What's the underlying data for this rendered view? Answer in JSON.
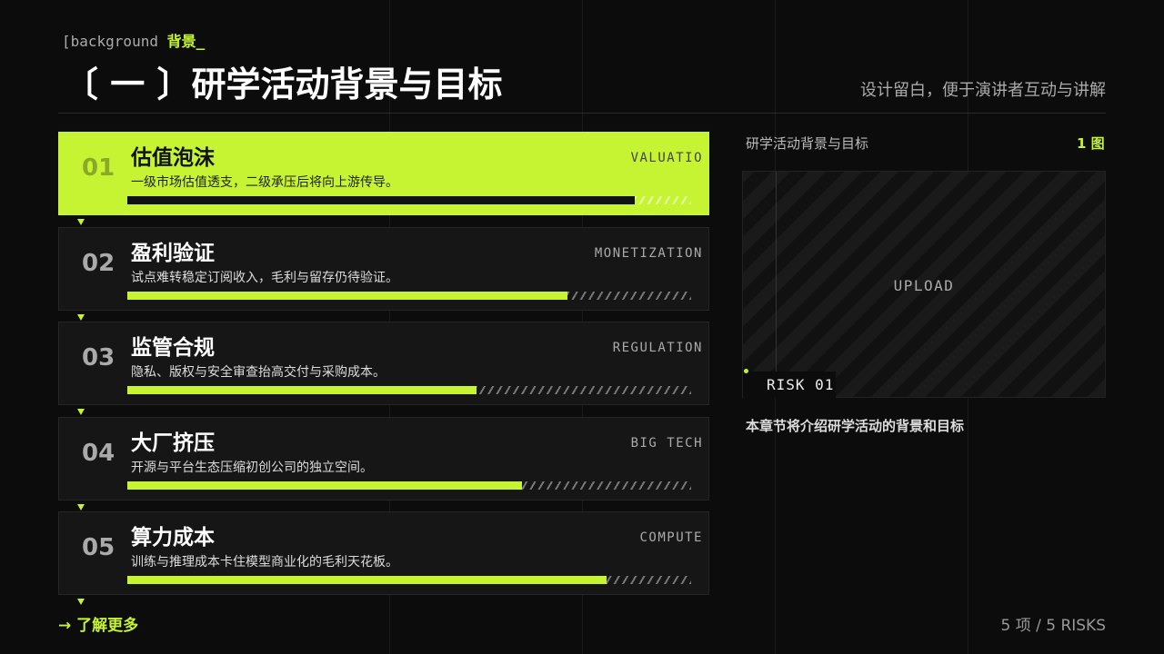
{
  "header": {
    "tag": "[background",
    "tag_accent": "背景_",
    "title": "〔 一 〕研学活动背景与目标",
    "note": "设计留白，便于演讲者互动与讲解"
  },
  "items": [
    {
      "number": "01",
      "title": "估值泡沫",
      "description": "一级市场估值透支，二级承压后将向上游传导。",
      "tag": "VALUATIO",
      "level": 90
    },
    {
      "number": "02",
      "title": "盈利验证",
      "description": "试点难转稳定订阅收入，毛利与留存仍待验证。",
      "tag": "MONETIZATION",
      "level": 78
    },
    {
      "number": "03",
      "title": "监管合规",
      "description": "隐私、版权与安全审查抬高交付与采购成本。",
      "tag": "REGULATION",
      "level": 62
    },
    {
      "number": "04",
      "title": "大厂挤压",
      "description": "开源与平台生态压缩初创公司的独立空间。",
      "tag": "BIG TECH",
      "level": 70
    },
    {
      "number": "05",
      "title": "算力成本",
      "description": "训练与推理成本卡住模型商业化的毛利天花板。",
      "tag": "COMPUTE",
      "level": 85
    }
  ],
  "panel": {
    "title": "研学活动背景与目标",
    "count": "1 图",
    "placeholder": "UPLOAD",
    "badge": "RISK 01",
    "caption": "本章节将介绍研学活动的背景和目标"
  },
  "footer": {
    "link": "→ 了解更多",
    "summary": "5 项 / 5 RISKS"
  }
}
